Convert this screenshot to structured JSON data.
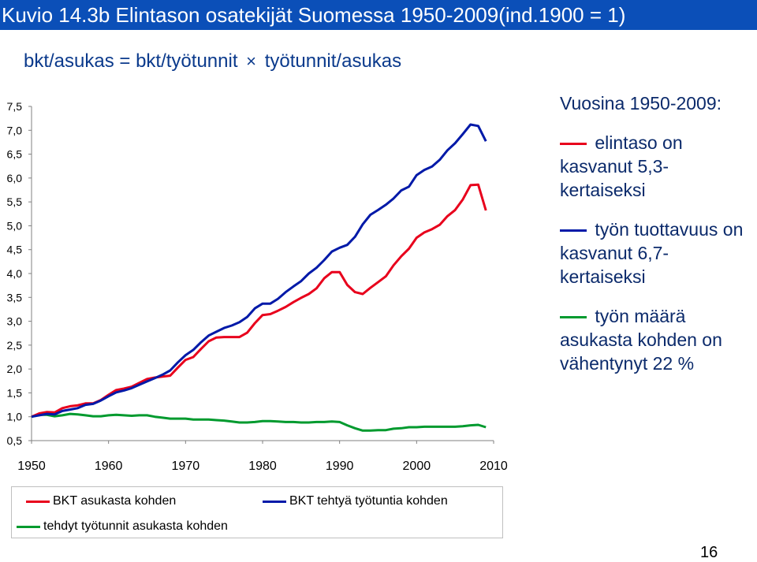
{
  "title": "Kuvio 14.3b Elintason osatekijät Suomessa 1950-2009(ind.1900 = 1)",
  "subtitle": {
    "left": "bkt/asukas = bkt/työtunnit",
    "cross": "×",
    "right": "työtunnit/asukas"
  },
  "side": {
    "heading": "Vuosina 1950-2009:",
    "items": [
      {
        "color": "#e8001c",
        "text": "elintaso on kasvanut 5,3-kertaiseksi"
      },
      {
        "color": "#0019a8",
        "text": "työn tuottavuus on kasvanut 6,7-kertaiseksi"
      },
      {
        "color": "#009a2e",
        "text": "työn määrä asukasta kohden on vähentynyt 22 %"
      }
    ]
  },
  "legend": [
    {
      "label": "BKT asukasta kohden",
      "color": "#e8001c"
    },
    {
      "label": "BKT tehtyä työtuntia kohden",
      "color": "#0019a8"
    },
    {
      "label": "tehdyt työtunnit asukasta kohden",
      "color": "#009a2e"
    }
  ],
  "page_number": "16",
  "chart_data": {
    "type": "line",
    "title": "Kuvio 14.3b Elintason osatekijät Suomessa 1950-2009(ind.1900 = 1)",
    "xlabel": "",
    "ylabel": "",
    "xlim": [
      1950,
      2010
    ],
    "ylim": [
      0.5,
      7.5
    ],
    "xticks": [
      "1950",
      "1960",
      "1970",
      "1980",
      "1990",
      "2000",
      "2010"
    ],
    "yticks": [
      "7,5",
      "7,0",
      "6,5",
      "6,0",
      "5,5",
      "5,0",
      "4,5",
      "4,0",
      "3,5",
      "3,0",
      "2,5",
      "2,0",
      "1,5",
      "1,0",
      "0,5"
    ],
    "grid": false,
    "legend_position": "bottom",
    "x": [
      1950,
      1951,
      1952,
      1953,
      1954,
      1955,
      1956,
      1957,
      1958,
      1959,
      1960,
      1961,
      1962,
      1963,
      1964,
      1965,
      1966,
      1967,
      1968,
      1969,
      1970,
      1971,
      1972,
      1973,
      1974,
      1975,
      1976,
      1977,
      1978,
      1979,
      1980,
      1981,
      1982,
      1983,
      1984,
      1985,
      1986,
      1987,
      1988,
      1989,
      1990,
      1991,
      1992,
      1993,
      1994,
      1995,
      1996,
      1997,
      1998,
      1999,
      2000,
      2001,
      2002,
      2003,
      2004,
      2005,
      2006,
      2007,
      2008,
      2009
    ],
    "series": [
      {
        "name": "BKT asukasta kohden",
        "color": "#e8001c",
        "values": [
          1.0,
          1.07,
          1.1,
          1.09,
          1.18,
          1.22,
          1.24,
          1.28,
          1.28,
          1.35,
          1.46,
          1.56,
          1.59,
          1.63,
          1.71,
          1.79,
          1.82,
          1.84,
          1.86,
          2.03,
          2.19,
          2.25,
          2.42,
          2.58,
          2.66,
          2.67,
          2.67,
          2.67,
          2.76,
          2.96,
          3.13,
          3.15,
          3.22,
          3.3,
          3.4,
          3.49,
          3.57,
          3.69,
          3.9,
          4.03,
          4.03,
          3.76,
          3.61,
          3.57,
          3.7,
          3.82,
          3.94,
          4.17,
          4.36,
          4.52,
          4.75,
          4.86,
          4.93,
          5.02,
          5.2,
          5.33,
          5.55,
          5.85,
          5.86,
          5.32
        ]
      },
      {
        "name": "BKT tehtyä työtuntia kohden",
        "color": "#0019a8",
        "values": [
          1.0,
          1.03,
          1.06,
          1.05,
          1.12,
          1.15,
          1.18,
          1.25,
          1.27,
          1.34,
          1.43,
          1.51,
          1.55,
          1.6,
          1.67,
          1.74,
          1.81,
          1.88,
          1.97,
          2.14,
          2.29,
          2.4,
          2.56,
          2.7,
          2.78,
          2.86,
          2.91,
          2.98,
          3.09,
          3.27,
          3.37,
          3.37,
          3.47,
          3.61,
          3.73,
          3.84,
          4.0,
          4.12,
          4.28,
          4.46,
          4.54,
          4.6,
          4.77,
          5.03,
          5.23,
          5.33,
          5.44,
          5.57,
          5.74,
          5.82,
          6.06,
          6.17,
          6.24,
          6.38,
          6.58,
          6.73,
          6.92,
          7.12,
          7.09,
          6.77
        ]
      },
      {
        "name": "tehdyt työtunnit asukasta kohden",
        "color": "#009a2e",
        "values": [
          1.0,
          1.04,
          1.04,
          1.01,
          1.03,
          1.06,
          1.05,
          1.03,
          1.01,
          1.01,
          1.03,
          1.04,
          1.03,
          1.02,
          1.03,
          1.03,
          1.0,
          0.98,
          0.96,
          0.96,
          0.96,
          0.94,
          0.94,
          0.94,
          0.93,
          0.92,
          0.9,
          0.88,
          0.88,
          0.89,
          0.91,
          0.91,
          0.9,
          0.89,
          0.89,
          0.88,
          0.88,
          0.89,
          0.89,
          0.9,
          0.89,
          0.82,
          0.76,
          0.71,
          0.71,
          0.72,
          0.72,
          0.75,
          0.76,
          0.78,
          0.78,
          0.79,
          0.79,
          0.79,
          0.79,
          0.79,
          0.8,
          0.82,
          0.83,
          0.78
        ]
      }
    ]
  }
}
